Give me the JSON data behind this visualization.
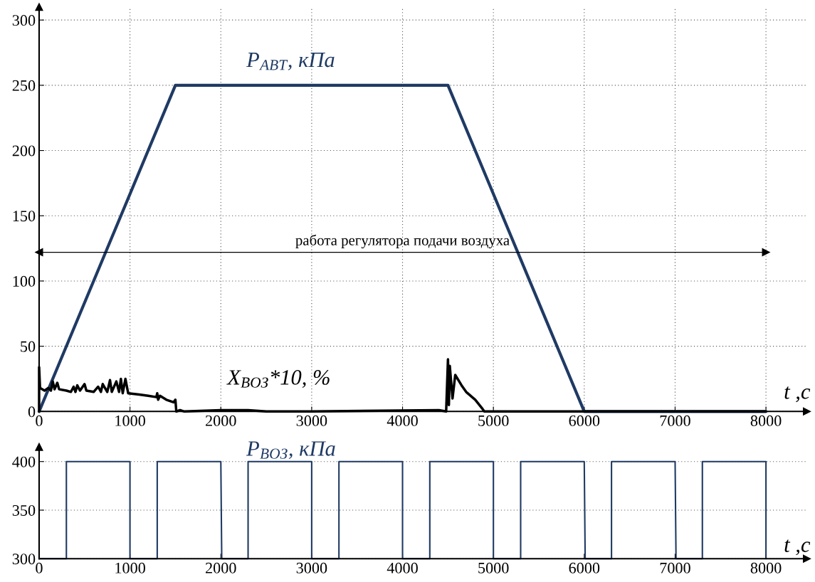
{
  "chart_data": [
    {
      "type": "line",
      "xlabel": "t ,c",
      "xlim": [
        0,
        8450
      ],
      "ylim": [
        0,
        310
      ],
      "xticks": [
        0,
        1000,
        2000,
        3000,
        4000,
        5000,
        6000,
        7000,
        8000
      ],
      "yticks": [
        0,
        50,
        100,
        150,
        200,
        250,
        300
      ],
      "grid": true,
      "series": [
        {
          "name": "P$_{АВТ}$, кПа",
          "color": "#1f3a64",
          "x": [
            0,
            1500,
            4500,
            6000,
            8000
          ],
          "values": [
            0,
            250,
            250,
            0,
            0
          ]
        },
        {
          "name": "X$_{ВОЗ}$*10, %",
          "color": "#000000",
          "x": [
            0,
            0,
            10,
            60,
            100,
            130,
            150,
            170,
            200,
            220,
            300,
            350,
            380,
            400,
            420,
            450,
            500,
            520,
            600,
            650,
            680,
            700,
            750,
            780,
            800,
            850,
            880,
            900,
            920,
            950,
            980,
            1100,
            1200,
            1290,
            1300,
            1310,
            1330,
            1400,
            1480,
            1500,
            1510,
            1550,
            1600,
            2000,
            2300,
            2500,
            3000,
            4400,
            4480,
            4500,
            4510,
            4520,
            4550,
            4580,
            4650,
            4700,
            4800,
            4880,
            4900,
            8000
          ],
          "values": [
            0,
            34,
            18,
            16,
            18,
            16,
            23,
            17,
            22,
            17,
            16,
            15,
            19,
            15,
            20,
            16,
            21,
            16,
            15,
            19,
            15,
            21,
            15,
            24,
            15,
            23,
            15,
            25,
            14,
            25,
            14,
            13,
            12,
            11,
            14,
            9,
            12,
            9,
            7,
            9,
            0,
            1,
            0,
            1,
            1,
            0,
            0,
            1,
            0,
            40,
            5,
            35,
            10,
            28,
            20,
            15,
            9,
            2,
            0,
            0
          ]
        }
      ],
      "ref_lines": [
        {
          "axis": "y",
          "value": 122,
          "label": "работа регулятора подачи воздуха"
        }
      ]
    },
    {
      "type": "line",
      "xlabel": "t ,c",
      "xlim": [
        0,
        8450
      ],
      "ylim": [
        300,
        415
      ],
      "xticks": [
        0,
        1000,
        2000,
        3000,
        4000,
        5000,
        6000,
        7000,
        8000
      ],
      "yticks": [
        300,
        350,
        400
      ],
      "grid": "y",
      "series": [
        {
          "name": "P$_{ВОЗ}$, кПа",
          "color": "#1f3a64",
          "x": [
            0,
            300,
            300,
            1000,
            1000,
            1300,
            1300,
            2000,
            2010,
            2300,
            2300,
            3000,
            3000,
            3300,
            3300,
            4000,
            4000,
            4300,
            4300,
            5000,
            5000,
            5300,
            5300,
            6000,
            6010,
            6300,
            6300,
            7000,
            7010,
            7300,
            7300,
            8000,
            8000
          ],
          "values": [
            300,
            300,
            400,
            400,
            300,
            300,
            400,
            400,
            300,
            300,
            400,
            400,
            300,
            300,
            400,
            400,
            300,
            300,
            400,
            400,
            300,
            300,
            400,
            400,
            300,
            300,
            400,
            400,
            300,
            300,
            400,
            400,
            300
          ]
        }
      ]
    }
  ]
}
